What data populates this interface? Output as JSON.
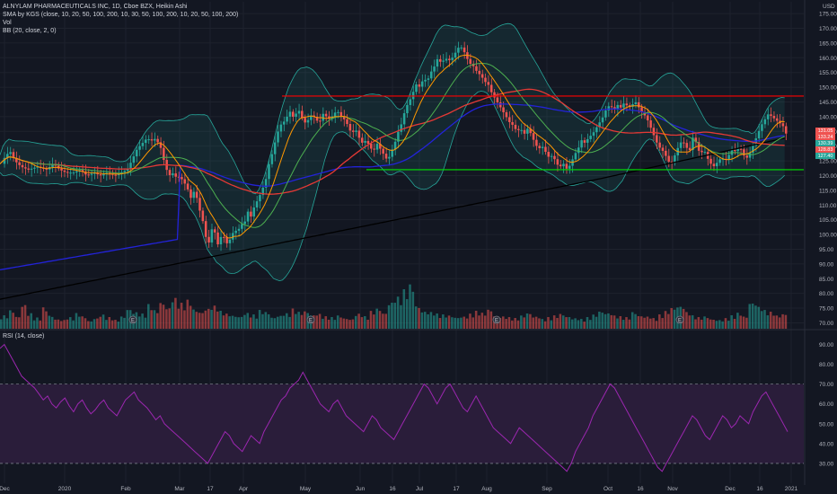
{
  "legend": {
    "line1": "ALNYLAM PHARMACEUTICALS INC, 1D, Cboe BZX, Heikin Ashi",
    "line2": "SMA by KGS (close, 10, 20, 50, 100, 200, 10, 30, 50, 100, 200, 10, 20, 50, 100, 200)",
    "line3": "Vol",
    "line4": "BB (20, close, 2, 0)",
    "rsi": "RSI (14, close)"
  },
  "colors": {
    "background": "#131722",
    "grid": "#1e222d",
    "up": "#26a69a",
    "down": "#ef5350",
    "sma_fast": "#ff9800",
    "sma_mid": "#4caf50",
    "sma_100": "#e53935",
    "sma_200": "#000000",
    "sma_blue": "#2323d9",
    "bb": "#26a69a",
    "resistance": "#ff0000",
    "support": "#00e600",
    "rsi": "#9c27b0",
    "rsi_band": "#2a1d3a"
  },
  "chart_data": [
    {
      "type": "candlestick",
      "title": "ALNYLAM PHARMACEUTICALS INC, 1D, Cboe BZX, Heikin Ashi",
      "currency": "USD",
      "ylim": [
        68,
        179
      ],
      "y_ticks": [
        70,
        75,
        80,
        85,
        90,
        95,
        100,
        105,
        110,
        115,
        120,
        125,
        130,
        135,
        140,
        145,
        150,
        155,
        160,
        165,
        170,
        175
      ],
      "x_labels": [
        "Dec",
        "2020",
        "Feb",
        "Mar",
        "17",
        "Apr",
        "May",
        "Jun",
        "16",
        "Jul",
        "17",
        "Aug",
        "Sep",
        "Oct",
        "16",
        "Nov",
        "Dec",
        "16",
        "2021"
      ],
      "price_path": [
        [
          0,
          124
        ],
        [
          5,
          127
        ],
        [
          10,
          128
        ],
        [
          15,
          125
        ],
        [
          22,
          123
        ],
        [
          30,
          122
        ],
        [
          40,
          123
        ],
        [
          50,
          122
        ],
        [
          58,
          124
        ],
        [
          65,
          122
        ],
        [
          72,
          121
        ],
        [
          80,
          121
        ],
        [
          88,
          122
        ],
        [
          95,
          120
        ],
        [
          103,
          121
        ],
        [
          110,
          120
        ],
        [
          118,
          121
        ],
        [
          126,
          120
        ],
        [
          133,
          121
        ],
        [
          140,
          122
        ],
        [
          145,
          125
        ],
        [
          148,
          127
        ],
        [
          151,
          129
        ],
        [
          154,
          130
        ],
        [
          157,
          131
        ],
        [
          160,
          132
        ],
        [
          163,
          133
        ],
        [
          166,
          131
        ],
        [
          169,
          133
        ],
        [
          172,
          132
        ],
        [
          175,
          131
        ],
        [
          178,
          129
        ],
        [
          181,
          125
        ],
        [
          184,
          122
        ],
        [
          187,
          120
        ],
        [
          190,
          121
        ],
        [
          193,
          120
        ],
        [
          196,
          119
        ],
        [
          199,
          120
        ],
        [
          202,
          118
        ],
        [
          205,
          117
        ],
        [
          208,
          115
        ],
        [
          210,
          112
        ],
        [
          212,
          113
        ],
        [
          215,
          115
        ],
        [
          218,
          112
        ],
        [
          221,
          108
        ],
        [
          224,
          105
        ],
        [
          227,
          100
        ],
        [
          230,
          96
        ],
        [
          233,
          100
        ],
        [
          236,
          104
        ],
        [
          239,
          98
        ],
        [
          242,
          96
        ],
        [
          245,
          100
        ],
        [
          248,
          99
        ],
        [
          251,
          97
        ],
        [
          254,
          98
        ],
        [
          257,
          100
        ],
        [
          260,
          102
        ],
        [
          263,
          100
        ],
        [
          266,
          104
        ],
        [
          270,
          103
        ],
        [
          274,
          108
        ],
        [
          278,
          106
        ],
        [
          282,
          110
        ],
        [
          286,
          112
        ],
        [
          290,
          115
        ],
        [
          294,
          118
        ],
        [
          298,
          124
        ],
        [
          302,
          128
        ],
        [
          306,
          133
        ],
        [
          310,
          137
        ],
        [
          314,
          138
        ],
        [
          318,
          140
        ],
        [
          322,
          142
        ],
        [
          326,
          139
        ],
        [
          330,
          143
        ],
        [
          334,
          140
        ],
        [
          338,
          138
        ],
        [
          342,
          139
        ],
        [
          346,
          141
        ],
        [
          350,
          139
        ],
        [
          354,
          138
        ],
        [
          358,
          141
        ],
        [
          362,
          140
        ],
        [
          366,
          139
        ],
        [
          370,
          141
        ],
        [
          374,
          142
        ],
        [
          378,
          140
        ],
        [
          382,
          139
        ],
        [
          386,
          137
        ],
        [
          390,
          134
        ],
        [
          394,
          136
        ],
        [
          398,
          133
        ],
        [
          402,
          131
        ],
        [
          406,
          132
        ],
        [
          410,
          130
        ],
        [
          414,
          128
        ],
        [
          418,
          131
        ],
        [
          422,
          129
        ],
        [
          426,
          127
        ],
        [
          430,
          125
        ],
        [
          434,
          128
        ],
        [
          438,
          131
        ],
        [
          442,
          135
        ],
        [
          446,
          138
        ],
        [
          450,
          143
        ],
        [
          454,
          145
        ],
        [
          458,
          148
        ],
        [
          462,
          151
        ],
        [
          466,
          150
        ],
        [
          470,
          153
        ],
        [
          474,
          152
        ],
        [
          478,
          155
        ],
        [
          482,
          157
        ],
        [
          486,
          160
        ],
        [
          490,
          158
        ],
        [
          494,
          160
        ],
        [
          498,
          159
        ],
        [
          502,
          160
        ],
        [
          506,
          162
        ],
        [
          510,
          164
        ],
        [
          514,
          163
        ],
        [
          518,
          160
        ],
        [
          522,
          158
        ],
        [
          526,
          157
        ],
        [
          530,
          155
        ],
        [
          534,
          154
        ],
        [
          538,
          152
        ],
        [
          542,
          151
        ],
        [
          546,
          148
        ],
        [
          550,
          146
        ],
        [
          554,
          144
        ],
        [
          558,
          142
        ],
        [
          562,
          140
        ],
        [
          566,
          138
        ],
        [
          570,
          137
        ],
        [
          574,
          135
        ],
        [
          578,
          136
        ],
        [
          582,
          134
        ],
        [
          586,
          136
        ],
        [
          590,
          134
        ],
        [
          594,
          131
        ],
        [
          598,
          129
        ],
        [
          602,
          130
        ],
        [
          606,
          128
        ],
        [
          610,
          126
        ],
        [
          614,
          127
        ],
        [
          618,
          124
        ],
        [
          622,
          123
        ],
        [
          626,
          124
        ],
        [
          630,
          122
        ],
        [
          634,
          124
        ],
        [
          638,
          127
        ],
        [
          642,
          129
        ],
        [
          646,
          132
        ],
        [
          650,
          131
        ],
        [
          654,
          133
        ],
        [
          658,
          134
        ],
        [
          662,
          136
        ],
        [
          666,
          138
        ],
        [
          670,
          140
        ],
        [
          674,
          143
        ],
        [
          678,
          144
        ],
        [
          682,
          142
        ],
        [
          686,
          144
        ],
        [
          690,
          143
        ],
        [
          694,
          145
        ],
        [
          698,
          143
        ],
        [
          702,
          144
        ],
        [
          706,
          145
        ],
        [
          710,
          143
        ],
        [
          714,
          141
        ],
        [
          718,
          140
        ],
        [
          722,
          137
        ],
        [
          726,
          134
        ],
        [
          730,
          131
        ],
        [
          734,
          129
        ],
        [
          738,
          128
        ],
        [
          742,
          125
        ],
        [
          746,
          124
        ],
        [
          750,
          127
        ],
        [
          754,
          130
        ],
        [
          758,
          132
        ],
        [
          762,
          130
        ],
        [
          766,
          128
        ],
        [
          770,
          133
        ],
        [
          774,
          131
        ],
        [
          778,
          127
        ],
        [
          782,
          129
        ],
        [
          786,
          126
        ],
        [
          790,
          124
        ],
        [
          794,
          123
        ],
        [
          798,
          125
        ],
        [
          802,
          126
        ],
        [
          806,
          125
        ],
        [
          810,
          127
        ],
        [
          814,
          129
        ],
        [
          818,
          128
        ],
        [
          822,
          130
        ],
        [
          826,
          127
        ],
        [
          830,
          126
        ],
        [
          834,
          128
        ],
        [
          838,
          131
        ],
        [
          842,
          134
        ],
        [
          846,
          137
        ],
        [
          850,
          139
        ],
        [
          854,
          141
        ],
        [
          858,
          140
        ],
        [
          862,
          139
        ],
        [
          866,
          138
        ],
        [
          870,
          137
        ],
        [
          874,
          134
        ],
        [
          877,
          133
        ]
      ],
      "volume_max": 100,
      "volume_path_samples": [
        30,
        42,
        28,
        55,
        35,
        25,
        48,
        30,
        22,
        20,
        26,
        35,
        28,
        18,
        24,
        32,
        26,
        20,
        28,
        45,
        38,
        34,
        55,
        42,
        60,
        48,
        70,
        58,
        65,
        44,
        38,
        46,
        52,
        40,
        34,
        30,
        28,
        36,
        32,
        42,
        38,
        26,
        30,
        35,
        45,
        38,
        40,
        32,
        34,
        28,
        26,
        30,
        24,
        22,
        34,
        28,
        40,
        46,
        36,
        60,
        72,
        88,
        100,
        52,
        40,
        38,
        34,
        32,
        30,
        26,
        28,
        34,
        40,
        36,
        44,
        30,
        28,
        26,
        24,
        30,
        36,
        28,
        22,
        26,
        30,
        34,
        28,
        24,
        22,
        26,
        32,
        40,
        36,
        30,
        28,
        26,
        38,
        30,
        28,
        24,
        32,
        40,
        48,
        52,
        38,
        30,
        26,
        28,
        22,
        20,
        24,
        30,
        36,
        28,
        60,
        50,
        42,
        38,
        30,
        34
      ],
      "earnings_markers_x": [
        148,
        346,
        553,
        757
      ],
      "resistance_level": 147,
      "support_level": 122,
      "price_labels": [
        "131.05",
        "133.24",
        "130.39",
        "128.83",
        "127.40"
      ]
    },
    {
      "type": "line",
      "title": "RSI (14, close)",
      "ylim": [
        20,
        97
      ],
      "y_ticks": [
        30,
        40,
        50,
        60,
        70,
        80,
        90
      ],
      "band": [
        30,
        70
      ],
      "rsi_samples": [
        88,
        90,
        86,
        82,
        78,
        74,
        72,
        70,
        68,
        65,
        62,
        64,
        60,
        58,
        61,
        63,
        59,
        56,
        60,
        62,
        58,
        55,
        57,
        60,
        62,
        58,
        56,
        54,
        58,
        62,
        64,
        66,
        62,
        60,
        58,
        55,
        52,
        54,
        50,
        48,
        46,
        44,
        42,
        40,
        38,
        36,
        34,
        32,
        30,
        34,
        38,
        42,
        46,
        44,
        40,
        38,
        36,
        40,
        44,
        42,
        40,
        46,
        50,
        54,
        58,
        62,
        64,
        68,
        70,
        72,
        76,
        72,
        68,
        64,
        60,
        58,
        56,
        60,
        62,
        58,
        54,
        52,
        50,
        48,
        46,
        50,
        54,
        52,
        48,
        46,
        44,
        42,
        46,
        50,
        54,
        58,
        62,
        66,
        70,
        68,
        64,
        60,
        64,
        68,
        70,
        66,
        62,
        58,
        56,
        60,
        64,
        60,
        56,
        52,
        48,
        46,
        44,
        42,
        40,
        44,
        48,
        46,
        44,
        42,
        40,
        38,
        36,
        34,
        32,
        30,
        28,
        26,
        30,
        36,
        40,
        44,
        48,
        54,
        58,
        62,
        66,
        70,
        68,
        64,
        60,
        56,
        52,
        48,
        44,
        40,
        36,
        32,
        28,
        26,
        30,
        34,
        38,
        42,
        46,
        50,
        54,
        52,
        48,
        44,
        42,
        46,
        50,
        54,
        52,
        48,
        50,
        54,
        52,
        50,
        56,
        60,
        64,
        66,
        62,
        58,
        54,
        50,
        46
      ]
    }
  ]
}
